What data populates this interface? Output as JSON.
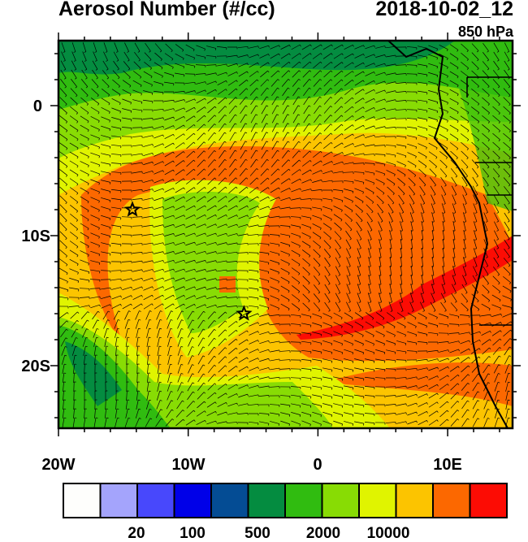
{
  "title": "Aerosol Number (#/cc)",
  "date": "2018-10-02_12",
  "level": "850 hPa",
  "axes": {
    "lon_labels": [
      "20W",
      "10W",
      "0",
      "10E"
    ],
    "lat_labels": [
      "0",
      "10S",
      "20S"
    ],
    "lon_range": [
      -20,
      15
    ],
    "lat_range": [
      -25,
      5
    ]
  },
  "colorbar": {
    "colors": [
      "#fefefc",
      "#a4a4fc",
      "#4848fc",
      "#0000e8",
      "#044c94",
      "#048c40",
      "#30bc10",
      "#88dc04",
      "#e0f400",
      "#fcc400",
      "#fc6800",
      "#fc0c04"
    ],
    "labels": [
      "20",
      "100",
      "500",
      "2000",
      "10000"
    ]
  },
  "markers": [
    {
      "lon": -14.3,
      "lat": -8
    },
    {
      "lon": -5.7,
      "lat": -16
    }
  ]
}
